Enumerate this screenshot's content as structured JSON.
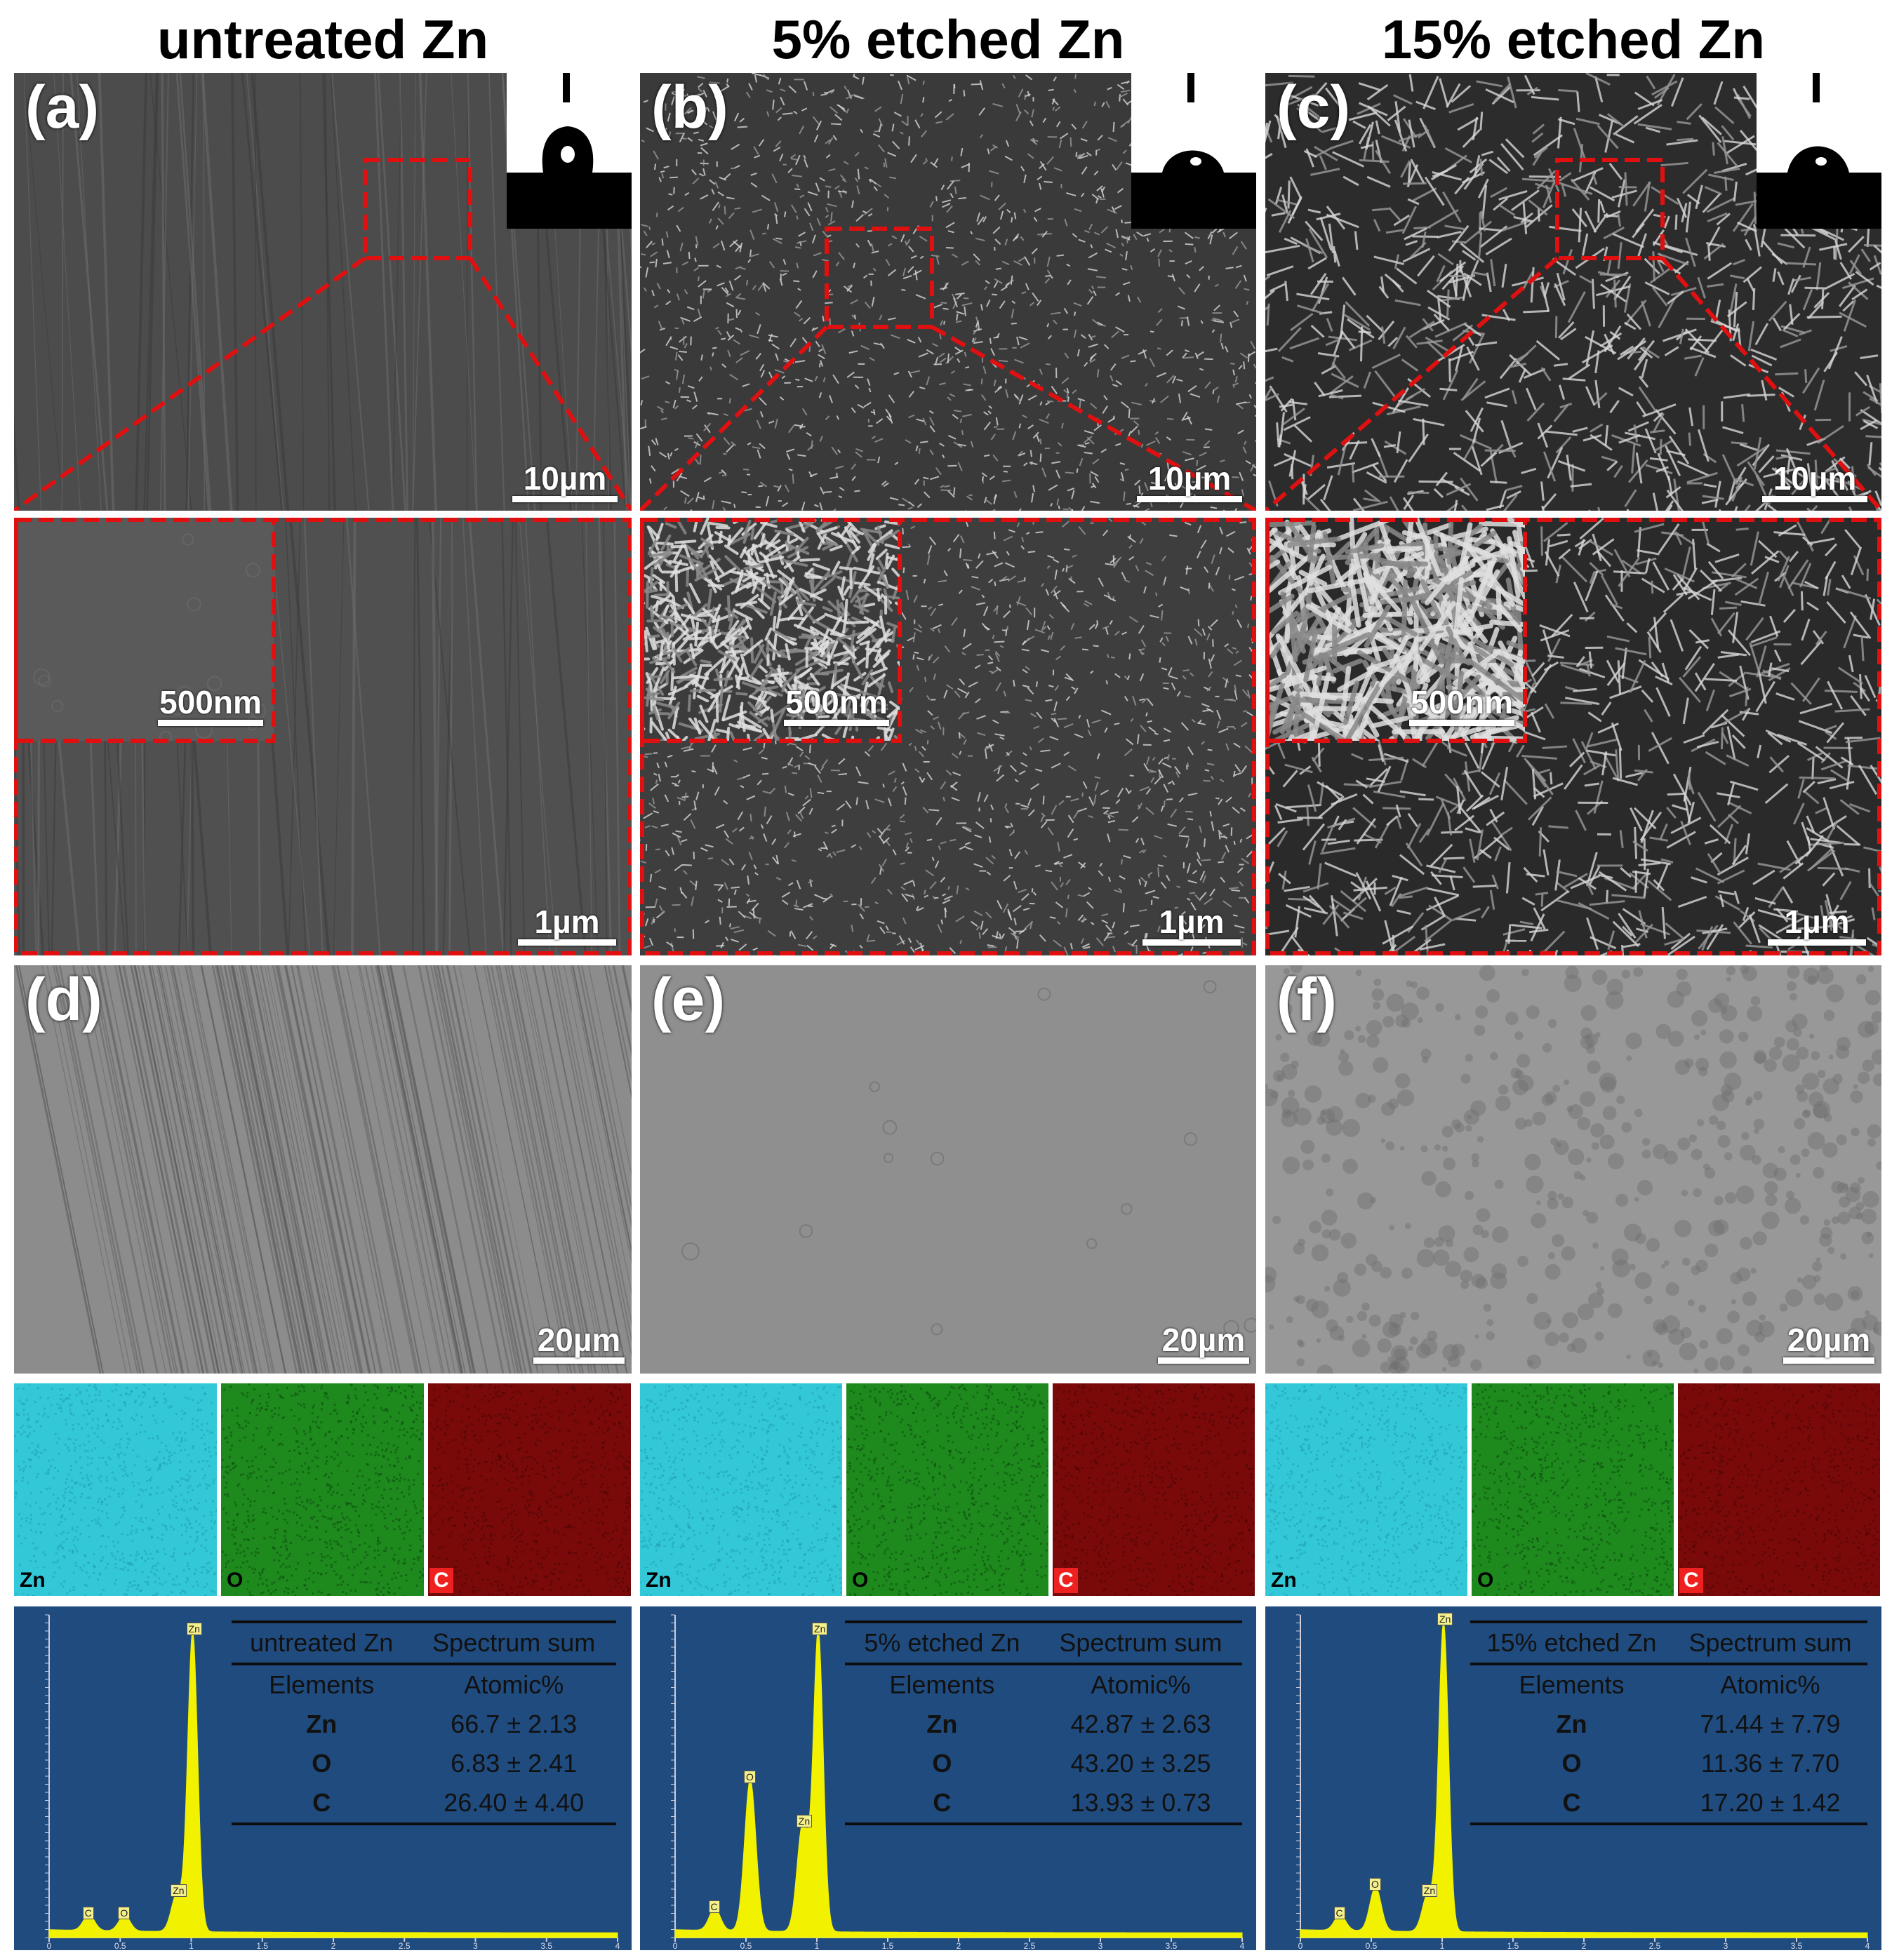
{
  "columns": [
    {
      "title": "untreated Zn",
      "sem_top": {
        "letter": "(a)",
        "scale": "10µm"
      },
      "sem_zoom": {
        "inset_scale": "500nm",
        "scale": "1µm"
      },
      "sem_map": {
        "letter": "(d)",
        "scale": "20µm"
      },
      "maps": [
        {
          "label": "Zn"
        },
        {
          "label": "O"
        },
        {
          "label": "C"
        }
      ],
      "spectrum": {
        "sample": "untreated Zn",
        "sum_label": "Spectrum sum",
        "elements_label": "Elements",
        "atomic_label": "Atomic%",
        "rows": [
          {
            "element": "Zn",
            "value": "66.7 ± 2.13"
          },
          {
            "element": "O",
            "value": "6.83 ± 2.41"
          },
          {
            "element": "C",
            "value": "26.40 ± 4.40"
          }
        ],
        "peaks": [
          {
            "label": "C",
            "x": 0.28,
            "h": 0.05
          },
          {
            "label": "O",
            "x": 0.53,
            "h": 0.05
          },
          {
            "label": "Zn",
            "x": 0.9,
            "h": 0.12
          },
          {
            "label": "Zn",
            "x": 1.01,
            "h": 0.95
          }
        ]
      }
    },
    {
      "title": "5% etched Zn",
      "sem_top": {
        "letter": "(b)",
        "scale": "10µm"
      },
      "sem_zoom": {
        "inset_scale": "500nm",
        "scale": "1µm"
      },
      "sem_map": {
        "letter": "(e)",
        "scale": "20µm"
      },
      "maps": [
        {
          "label": "Zn"
        },
        {
          "label": "O"
        },
        {
          "label": "C"
        }
      ],
      "spectrum": {
        "sample": "5% etched Zn",
        "sum_label": "Spectrum sum",
        "elements_label": "Elements",
        "atomic_label": "Atomic%",
        "rows": [
          {
            "element": "Zn",
            "value": "42.87 ± 2.63"
          },
          {
            "element": "O",
            "value": "43.20 ± 3.25"
          },
          {
            "element": "C",
            "value": "13.93 ± 0.73"
          }
        ],
        "peaks": [
          {
            "label": "C",
            "x": 0.28,
            "h": 0.07
          },
          {
            "label": "O",
            "x": 0.53,
            "h": 0.48
          },
          {
            "label": "Zn",
            "x": 0.9,
            "h": 0.34
          },
          {
            "label": "Zn",
            "x": 1.01,
            "h": 0.95
          }
        ]
      }
    },
    {
      "title": "15% etched Zn",
      "sem_top": {
        "letter": "(c)",
        "scale": "10µm"
      },
      "sem_zoom": {
        "inset_scale": "500nm",
        "scale": "1µm"
      },
      "sem_map": {
        "letter": "(f)",
        "scale": "20µm"
      },
      "maps": [
        {
          "label": "Zn"
        },
        {
          "label": "O"
        },
        {
          "label": "C"
        }
      ],
      "spectrum": {
        "sample": "15% etched Zn",
        "sum_label": "Spectrum sum",
        "elements_label": "Elements",
        "atomic_label": "Atomic%",
        "rows": [
          {
            "element": "Zn",
            "value": "71.44 ± 7.79"
          },
          {
            "element": "O",
            "value": "11.36 ± 7.70"
          },
          {
            "element": "C",
            "value": "17.20 ± 1.42"
          }
        ],
        "peaks": [
          {
            "label": "C",
            "x": 0.28,
            "h": 0.05
          },
          {
            "label": "O",
            "x": 0.53,
            "h": 0.14
          },
          {
            "label": "Zn",
            "x": 0.9,
            "h": 0.12
          },
          {
            "label": "Zn",
            "x": 1.01,
            "h": 0.98
          }
        ]
      }
    }
  ],
  "spectrum_axis_ticks": [
    "0",
    "0.5",
    "1",
    "1.5",
    "2",
    "2.5",
    "3",
    "3.5",
    "4"
  ],
  "colors": {
    "zn_map": "#33c8d8",
    "o_map": "#1e8a1e",
    "c_map": "#7a0a0a",
    "spectrum_bg": "#1f4b7e",
    "peak": "#f2f200",
    "dash": "#e01010"
  }
}
